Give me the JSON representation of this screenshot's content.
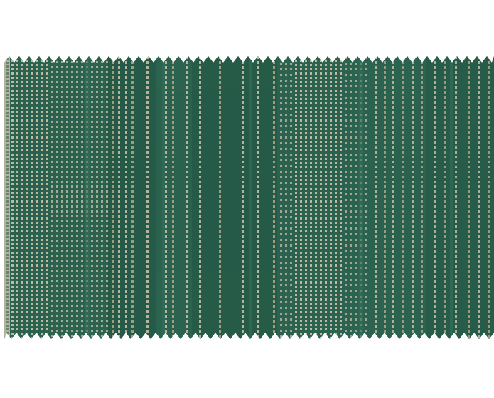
{
  "image": {
    "subject": "fabric-swatch",
    "pattern": "multi-stripe-dobby-weave",
    "edge": "pinked-zigzag",
    "colors": {
      "background": "#ffffff",
      "ground": "#2f6b57",
      "ground_dark": "#255a48",
      "ground_light": "#3a7a64",
      "yarn_light": "#d8cfb5",
      "yarn_mid": "#bfb48f",
      "selvedge": "#d9d2bb"
    }
  }
}
